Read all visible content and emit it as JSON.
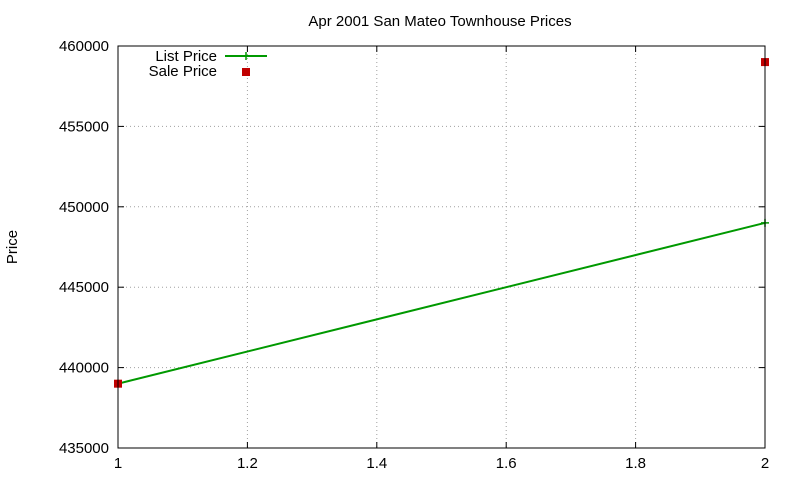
{
  "chart_data": {
    "type": "line",
    "title": "Apr 2001 San Mateo Townhouse Prices",
    "xlabel": "",
    "ylabel": "Price",
    "xlim": [
      1,
      2
    ],
    "ylim": [
      435000,
      460000
    ],
    "x_ticks": [
      1,
      1.2,
      1.4,
      1.6,
      1.8,
      2
    ],
    "x_tick_labels": [
      "1",
      "1.2",
      "1.4",
      "1.6",
      "1.8",
      "2"
    ],
    "y_ticks": [
      435000,
      440000,
      445000,
      450000,
      455000,
      460000
    ],
    "y_tick_labels": [
      "435000",
      "440000",
      "445000",
      "450000",
      "455000",
      "460000"
    ],
    "grid": true,
    "legend_position": "top-left",
    "series": [
      {
        "name": "List Price",
        "style": "line-with-plus-markers",
        "color": "#009900",
        "points": [
          [
            1,
            439000
          ],
          [
            2,
            449000
          ]
        ]
      },
      {
        "name": "Sale Price",
        "style": "square-markers",
        "color": "#c00000",
        "points": [
          [
            1,
            439000
          ],
          [
            2,
            459000
          ]
        ]
      }
    ]
  }
}
